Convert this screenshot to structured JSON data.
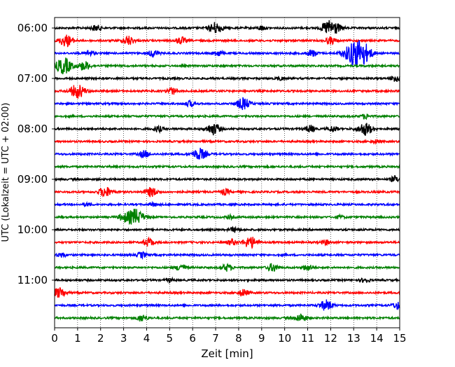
{
  "chart_data": {
    "type": "line",
    "title": "",
    "xlabel": "Zeit  [min]",
    "ylabel": "UTC (Lokalzeit = UTC + 02:00)",
    "xlim": [
      0,
      15
    ],
    "x_ticks": [
      "0",
      "1",
      "2",
      "3",
      "4",
      "5",
      "6",
      "7",
      "8",
      "9",
      "10",
      "11",
      "12",
      "13",
      "14",
      "15"
    ],
    "y_tick_labels": [
      "06:00",
      "07:00",
      "08:00",
      "09:00",
      "10:00",
      "11:00"
    ],
    "grid": "vertical-dotted",
    "trace_colors": [
      "#000000",
      "#ff0000",
      "#0000ff",
      "#008000"
    ],
    "series": [
      {
        "time": "05:59",
        "color": "#000000",
        "events": [
          [
            1.8,
            0.5
          ],
          [
            7.0,
            1.0
          ],
          [
            9.0,
            0.4
          ],
          [
            11.8,
            0.6
          ],
          [
            12.1,
            1.2
          ]
        ]
      },
      {
        "time": "06:14",
        "color": "#ff0000",
        "events": [
          [
            0.5,
            1.0
          ],
          [
            3.2,
            0.8
          ],
          [
            5.5,
            0.6
          ],
          [
            12.0,
            0.6
          ]
        ]
      },
      {
        "time": "06:29",
        "color": "#0000ff",
        "events": [
          [
            1.5,
            0.5
          ],
          [
            4.3,
            0.6
          ],
          [
            7.1,
            0.5
          ],
          [
            11.2,
            0.6
          ],
          [
            13.0,
            1.8
          ],
          [
            13.4,
            1.5
          ]
        ]
      },
      {
        "time": "06:44",
        "color": "#008000",
        "events": [
          [
            0.4,
            1.4
          ],
          [
            1.3,
            0.8
          ]
        ]
      },
      {
        "time": "06:59",
        "color": "#000000",
        "events": [
          [
            9.8,
            0.3
          ],
          [
            14.8,
            0.6
          ]
        ]
      },
      {
        "time": "07:14",
        "color": "#ff0000",
        "events": [
          [
            1.0,
            1.2
          ],
          [
            5.1,
            0.6
          ]
        ]
      },
      {
        "time": "07:29",
        "color": "#0000ff",
        "events": [
          [
            5.9,
            0.5
          ],
          [
            8.2,
            1.0
          ]
        ]
      },
      {
        "time": "07:44",
        "color": "#008000",
        "events": [
          [
            13.5,
            0.4
          ]
        ]
      },
      {
        "time": "07:59",
        "color": "#000000",
        "events": [
          [
            4.5,
            0.5
          ],
          [
            6.9,
            1.0
          ],
          [
            11.1,
            0.6
          ],
          [
            12.1,
            0.5
          ],
          [
            13.5,
            1.1
          ]
        ]
      },
      {
        "time": "08:14",
        "color": "#ff0000",
        "events": [
          [
            14.0,
            0.3
          ]
        ]
      },
      {
        "time": "08:29",
        "color": "#0000ff",
        "events": [
          [
            3.9,
            0.6
          ],
          [
            6.3,
            1.0
          ]
        ]
      },
      {
        "time": "08:44",
        "color": "#008000",
        "events": []
      },
      {
        "time": "08:59",
        "color": "#000000",
        "events": [
          [
            14.8,
            0.5
          ]
        ]
      },
      {
        "time": "09:14",
        "color": "#ff0000",
        "events": [
          [
            2.2,
            0.9
          ],
          [
            4.2,
            0.8
          ],
          [
            7.4,
            0.5
          ]
        ]
      },
      {
        "time": "09:29",
        "color": "#0000ff",
        "events": [
          [
            1.4,
            0.3
          ],
          [
            4.3,
            0.3
          ]
        ]
      },
      {
        "time": "09:44",
        "color": "#008000",
        "events": [
          [
            3.0,
            0.6
          ],
          [
            3.5,
            1.4
          ],
          [
            7.6,
            0.3
          ],
          [
            12.4,
            0.3
          ]
        ]
      },
      {
        "time": "09:59",
        "color": "#000000",
        "events": [
          [
            7.8,
            0.4
          ]
        ]
      },
      {
        "time": "10:14",
        "color": "#ff0000",
        "events": [
          [
            4.1,
            0.7
          ],
          [
            7.7,
            0.5
          ],
          [
            8.5,
            1.0
          ],
          [
            11.8,
            0.4
          ]
        ]
      },
      {
        "time": "10:29",
        "color": "#0000ff",
        "events": [
          [
            0.3,
            0.4
          ],
          [
            3.8,
            0.5
          ]
        ]
      },
      {
        "time": "10:44",
        "color": "#008000",
        "events": [
          [
            5.5,
            0.6
          ],
          [
            7.5,
            0.6
          ],
          [
            9.5,
            0.7
          ],
          [
            11.0,
            0.5
          ]
        ]
      },
      {
        "time": "10:59",
        "color": "#000000",
        "events": [
          [
            5.0,
            0.3
          ],
          [
            13.5,
            0.4
          ]
        ]
      },
      {
        "time": "11:14",
        "color": "#ff0000",
        "events": [
          [
            0.2,
            0.9
          ],
          [
            8.2,
            0.6
          ]
        ]
      },
      {
        "time": "11:29",
        "color": "#0000ff",
        "events": [
          [
            11.8,
            0.9
          ],
          [
            14.9,
            0.6
          ]
        ]
      },
      {
        "time": "11:44",
        "color": "#008000",
        "events": [
          [
            3.8,
            0.6
          ],
          [
            10.7,
            0.7
          ]
        ]
      }
    ]
  }
}
